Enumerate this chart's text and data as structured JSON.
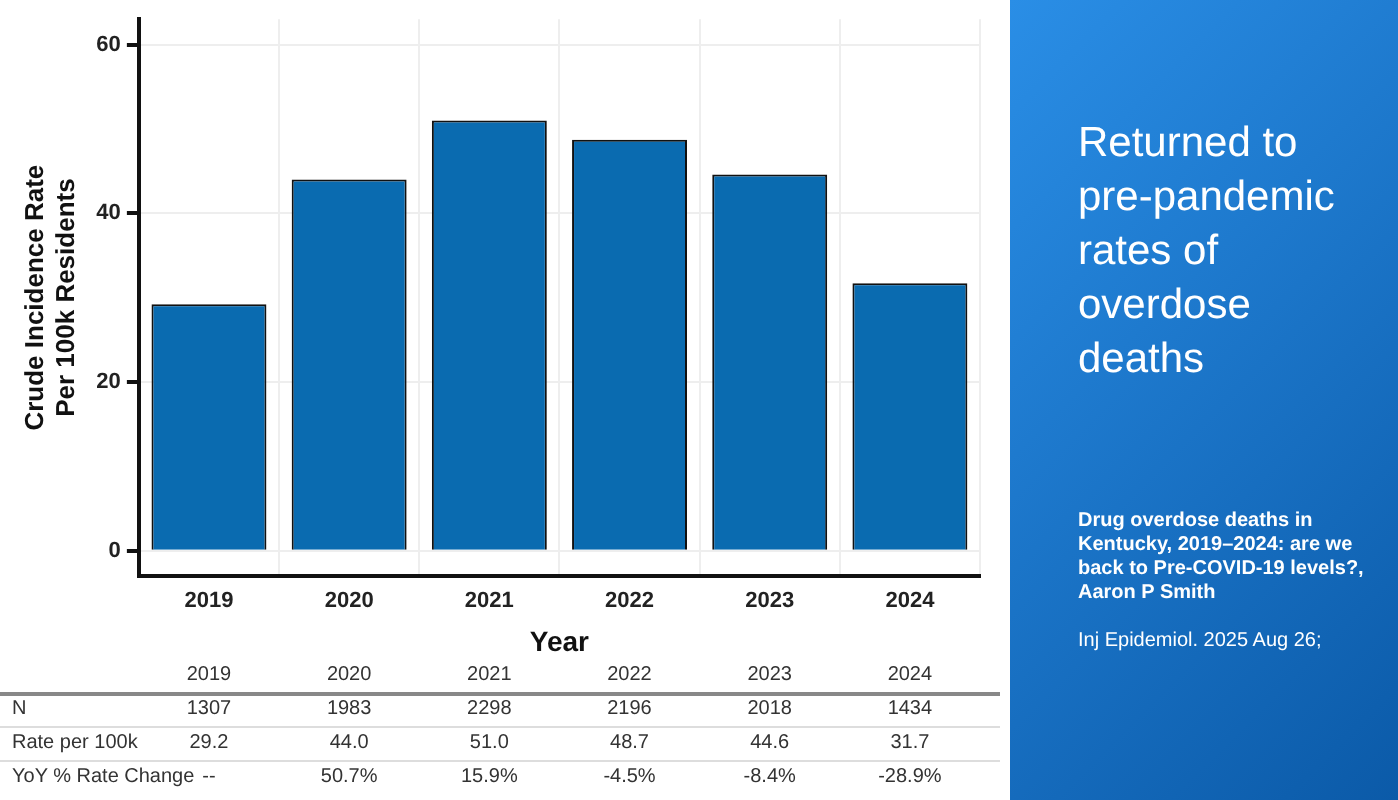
{
  "chart_data": {
    "type": "bar",
    "title": "Returned to pre-pandemic rates of overdose deaths",
    "xlabel": "Year",
    "ylabel": "Crude Incidence Rate Per 100k Residents",
    "categories": [
      "2019",
      "2020",
      "2021",
      "2022",
      "2023",
      "2024"
    ],
    "values": [
      29.2,
      44.0,
      51.0,
      48.7,
      44.6,
      31.7
    ],
    "value_labels": [
      "29.2",
      "44.0",
      "51.0",
      "48.7",
      "44.6",
      "31.7"
    ],
    "color": "#0a6bb0",
    "ylim": [
      -3,
      63
    ],
    "yticks": [
      0,
      20,
      40,
      60
    ],
    "grid": true,
    "legend": false,
    "annotations": [
      "N",
      "1307",
      "1983",
      "2298",
      "2196",
      "2018",
      "1434",
      "Rate per 100k",
      "YoY % Rate Change",
      "--",
      "50.7%",
      "15.9%",
      "-4.5%",
      "-8.4%",
      "-28.9%",
      "Drug overdose deaths in Kentucky, 2019–2024: are we back to Pre-COVID-19 levels?, Aaron P Smith",
      "Inj Epidemiol. 2025 Aug 26;"
    ]
  }
}
